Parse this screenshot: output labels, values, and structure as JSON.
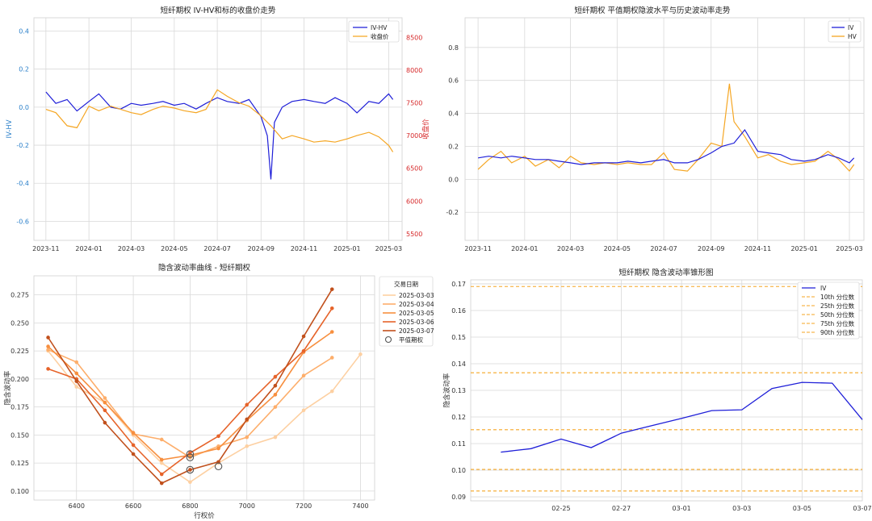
{
  "chart_data": [
    {
      "type": "line",
      "title": "短纤期权 IV-HV和标的收盘价走势",
      "xlabel": "",
      "ylabel": "IV-HV",
      "ylabel_right": "收盘价",
      "x_ticks": [
        "2023-11",
        "2024-01",
        "2024-03",
        "2024-05",
        "2024-07",
        "2024-09",
        "2024-11",
        "2025-01",
        "2025-03"
      ],
      "x_range": [
        "2023-10-15",
        "2025-03-20"
      ],
      "ylim": [
        -0.7,
        0.47
      ],
      "ylim_right": [
        5400,
        8800
      ],
      "y_ticks": [
        -0.6,
        -0.4,
        -0.2,
        0.0,
        0.2,
        0.4
      ],
      "y_ticks_right": [
        5500,
        6000,
        6500,
        7000,
        7500,
        8000,
        8500
      ],
      "legend_position": "top-right",
      "series": [
        {
          "name": "IV-HV",
          "axis": "left",
          "color": "#1f1fd8",
          "x": [
            "2023-11-01",
            "2023-11-15",
            "2023-12-01",
            "2023-12-15",
            "2024-01-01",
            "2024-01-15",
            "2024-02-01",
            "2024-02-15",
            "2024-03-01",
            "2024-03-15",
            "2024-04-01",
            "2024-04-15",
            "2024-05-01",
            "2024-05-15",
            "2024-06-01",
            "2024-06-15",
            "2024-07-01",
            "2024-07-15",
            "2024-08-01",
            "2024-08-15",
            "2024-09-01",
            "2024-09-10",
            "2024-09-15",
            "2024-09-20",
            "2024-10-01",
            "2024-10-15",
            "2024-11-01",
            "2024-11-15",
            "2024-12-01",
            "2024-12-15",
            "2025-01-01",
            "2025-01-15",
            "2025-02-01",
            "2025-02-15",
            "2025-03-01",
            "2025-03-07"
          ],
          "y": [
            0.08,
            0.02,
            0.04,
            -0.02,
            0.03,
            0.07,
            0.0,
            -0.01,
            0.02,
            0.01,
            0.02,
            0.03,
            0.01,
            0.02,
            -0.01,
            0.02,
            0.05,
            0.03,
            0.02,
            0.04,
            -0.05,
            -0.15,
            -0.38,
            -0.08,
            0.0,
            0.03,
            0.04,
            0.03,
            0.02,
            0.05,
            0.02,
            -0.03,
            0.03,
            0.02,
            0.07,
            0.04
          ]
        },
        {
          "name": "收盘价",
          "axis": "right",
          "color": "#f5a623",
          "x": [
            "2023-11-01",
            "2023-11-15",
            "2023-12-01",
            "2023-12-15",
            "2024-01-01",
            "2024-01-15",
            "2024-02-01",
            "2024-02-15",
            "2024-03-01",
            "2024-03-15",
            "2024-04-01",
            "2024-04-15",
            "2024-05-01",
            "2024-05-15",
            "2024-06-01",
            "2024-06-15",
            "2024-07-01",
            "2024-07-15",
            "2024-08-01",
            "2024-08-15",
            "2024-09-01",
            "2024-09-15",
            "2024-10-01",
            "2024-10-15",
            "2024-11-01",
            "2024-11-15",
            "2024-12-01",
            "2024-12-15",
            "2025-01-01",
            "2025-01-15",
            "2025-02-01",
            "2025-02-15",
            "2025-03-01",
            "2025-03-07"
          ],
          "y": [
            7400,
            7350,
            7150,
            7120,
            7450,
            7380,
            7450,
            7400,
            7350,
            7320,
            7400,
            7450,
            7420,
            7380,
            7350,
            7400,
            7700,
            7600,
            7500,
            7450,
            7300,
            7150,
            6950,
            7000,
            6950,
            6900,
            6920,
            6900,
            6950,
            7000,
            7050,
            6980,
            6850,
            6750
          ]
        }
      ]
    },
    {
      "type": "line",
      "title": "短纤期权 平值期权隐波水平与历史波动率走势",
      "xlabel": "",
      "ylabel": "",
      "x_ticks": [
        "2023-11",
        "2024-01",
        "2024-03",
        "2024-05",
        "2024-07",
        "2024-09",
        "2024-11",
        "2025-01",
        "2025-03"
      ],
      "x_range": [
        "2023-10-15",
        "2025-03-20"
      ],
      "ylim": [
        -0.37,
        0.98
      ],
      "y_ticks": [
        -0.2,
        0.0,
        0.2,
        0.4,
        0.6,
        0.8
      ],
      "legend_position": "top-right",
      "series": [
        {
          "name": "IV",
          "color": "#1f1fd8",
          "x": [
            "2023-11-01",
            "2023-11-15",
            "2023-12-01",
            "2023-12-15",
            "2024-01-01",
            "2024-01-15",
            "2024-02-01",
            "2024-02-15",
            "2024-03-01",
            "2024-03-15",
            "2024-04-01",
            "2024-04-15",
            "2024-05-01",
            "2024-05-15",
            "2024-06-01",
            "2024-06-15",
            "2024-07-01",
            "2024-07-15",
            "2024-08-01",
            "2024-08-15",
            "2024-09-01",
            "2024-09-15",
            "2024-10-01",
            "2024-10-15",
            "2024-11-01",
            "2024-11-15",
            "2024-12-01",
            "2024-12-15",
            "2025-01-01",
            "2025-01-15",
            "2025-02-01",
            "2025-02-15",
            "2025-03-01",
            "2025-03-07"
          ],
          "y": [
            0.13,
            0.14,
            0.13,
            0.14,
            0.13,
            0.12,
            0.12,
            0.11,
            0.1,
            0.09,
            0.1,
            0.1,
            0.1,
            0.11,
            0.1,
            0.11,
            0.12,
            0.1,
            0.1,
            0.12,
            0.16,
            0.2,
            0.22,
            0.3,
            0.17,
            0.16,
            0.15,
            0.12,
            0.11,
            0.12,
            0.15,
            0.13,
            0.1,
            0.13
          ]
        },
        {
          "name": "HV",
          "color": "#f5a623",
          "x": [
            "2023-11-01",
            "2023-11-15",
            "2023-12-01",
            "2023-12-15",
            "2024-01-01",
            "2024-01-15",
            "2024-02-01",
            "2024-02-15",
            "2024-03-01",
            "2024-03-15",
            "2024-04-01",
            "2024-04-15",
            "2024-05-01",
            "2024-05-15",
            "2024-06-01",
            "2024-06-15",
            "2024-07-01",
            "2024-07-15",
            "2024-08-01",
            "2024-08-15",
            "2024-09-01",
            "2024-09-15",
            "2024-09-25",
            "2024-10-01",
            "2024-10-15",
            "2024-11-01",
            "2024-11-15",
            "2024-12-01",
            "2024-12-15",
            "2025-01-01",
            "2025-01-15",
            "2025-02-01",
            "2025-02-15",
            "2025-03-01",
            "2025-03-07"
          ],
          "y": [
            0.06,
            0.12,
            0.17,
            0.1,
            0.14,
            0.08,
            0.12,
            0.07,
            0.14,
            0.1,
            0.09,
            0.1,
            0.09,
            0.1,
            0.09,
            0.09,
            0.16,
            0.06,
            0.05,
            0.12,
            0.22,
            0.2,
            0.58,
            0.35,
            0.26,
            0.13,
            0.15,
            0.11,
            0.09,
            0.1,
            0.11,
            0.17,
            0.12,
            0.05,
            0.09
          ]
        }
      ]
    },
    {
      "type": "line",
      "title": "隐含波动率曲线 - 短纤期权",
      "xlabel": "行权价",
      "ylabel": "隐含波动率",
      "xlim": [
        6250,
        7450
      ],
      "ylim": [
        0.092,
        0.292
      ],
      "x_ticks": [
        6400,
        6600,
        6800,
        7000,
        7200,
        7400
      ],
      "y_ticks": [
        0.1,
        0.125,
        0.15,
        0.175,
        0.2,
        0.225,
        0.25,
        0.275
      ],
      "legend_title": "交易日期",
      "legend_position": "outside-right",
      "atm_label": "平值期权",
      "series": [
        {
          "name": "2025-03-03",
          "color": "#fdd0a2",
          "x": [
            6300,
            6400,
            6500,
            6600,
            6700,
            6800,
            6900,
            7000,
            7100,
            7200,
            7300,
            7400
          ],
          "y": [
            0.225,
            0.193,
            0.179,
            0.15,
            0.125,
            0.108,
            0.125,
            0.14,
            0.148,
            0.172,
            0.189,
            0.222
          ]
        },
        {
          "name": "2025-03-04",
          "color": "#fdae6b",
          "x": [
            6300,
            6400,
            6500,
            6600,
            6700,
            6800,
            6900,
            7000,
            7100,
            7200,
            7300
          ],
          "y": [
            0.226,
            0.215,
            0.183,
            0.151,
            0.146,
            0.13,
            0.14,
            0.148,
            0.175,
            0.203,
            0.219
          ]
        },
        {
          "name": "2025-03-05",
          "color": "#f78f3f",
          "x": [
            6300,
            6400,
            6500,
            6600,
            6700,
            6800,
            6900,
            7000,
            7100,
            7200,
            7300
          ],
          "y": [
            0.229,
            0.205,
            0.179,
            0.152,
            0.128,
            0.132,
            0.138,
            0.163,
            0.186,
            0.224,
            0.242
          ]
        },
        {
          "name": "2025-03-06",
          "color": "#e6632a",
          "x": [
            6300,
            6400,
            6500,
            6600,
            6700,
            6800,
            6900,
            7000,
            7100,
            7200,
            7300
          ],
          "y": [
            0.209,
            0.2,
            0.172,
            0.141,
            0.115,
            0.134,
            0.149,
            0.177,
            0.202,
            0.225,
            0.263
          ]
        },
        {
          "name": "2025-03-07",
          "color": "#c1501c",
          "x": [
            6300,
            6400,
            6500,
            6600,
            6700,
            6800,
            6900,
            7000,
            7100,
            7200,
            7300
          ],
          "y": [
            0.237,
            0.198,
            0.161,
            0.133,
            0.107,
            0.119,
            0.126,
            0.164,
            0.194,
            0.238,
            0.28
          ]
        }
      ],
      "atm_points": [
        {
          "x": 6800,
          "y": 0.13
        },
        {
          "x": 6800,
          "y": 0.133
        },
        {
          "x": 6800,
          "y": 0.119
        },
        {
          "x": 6900,
          "y": 0.122
        }
      ]
    },
    {
      "type": "line",
      "title": "短纤期权 隐含波动率锥形图",
      "xlabel": "",
      "ylabel": "隐含波动率",
      "x_ticks": [
        "02-25",
        "02-27",
        "03-01",
        "03-03",
        "03-05",
        "03-07"
      ],
      "x_range": [
        "2025-02-22",
        "2025-03-07"
      ],
      "ylim": [
        0.0885,
        0.1715
      ],
      "y_ticks": [
        0.09,
        0.1,
        0.11,
        0.12,
        0.13,
        0.14,
        0.15,
        0.16,
        0.17
      ],
      "legend_position": "top-right",
      "series": [
        {
          "name": "IV",
          "color": "#1f1fd8",
          "x": [
            "2025-02-23",
            "2025-02-24",
            "2025-02-25",
            "2025-02-26",
            "2025-02-27",
            "2025-02-28",
            "2025-03-01",
            "2025-03-02",
            "2025-03-03",
            "2025-03-04",
            "2025-03-05",
            "2025-03-06",
            "2025-03-07"
          ],
          "y": [
            0.1068,
            0.1081,
            0.1117,
            0.1085,
            0.1139,
            0.1167,
            0.1195,
            0.1224,
            0.1227,
            0.1307,
            0.133,
            0.1327,
            0.119
          ]
        }
      ],
      "percentiles": [
        {
          "name": "10th 分位数",
          "value": 0.0922
        },
        {
          "name": "25th 分位数",
          "value": 0.1003
        },
        {
          "name": "50th 分位数",
          "value": 0.1152
        },
        {
          "name": "75th 分位数",
          "value": 0.1366
        },
        {
          "name": "90th 分位数",
          "value": 0.169
        }
      ],
      "percentile_color": "#f5a623"
    }
  ]
}
